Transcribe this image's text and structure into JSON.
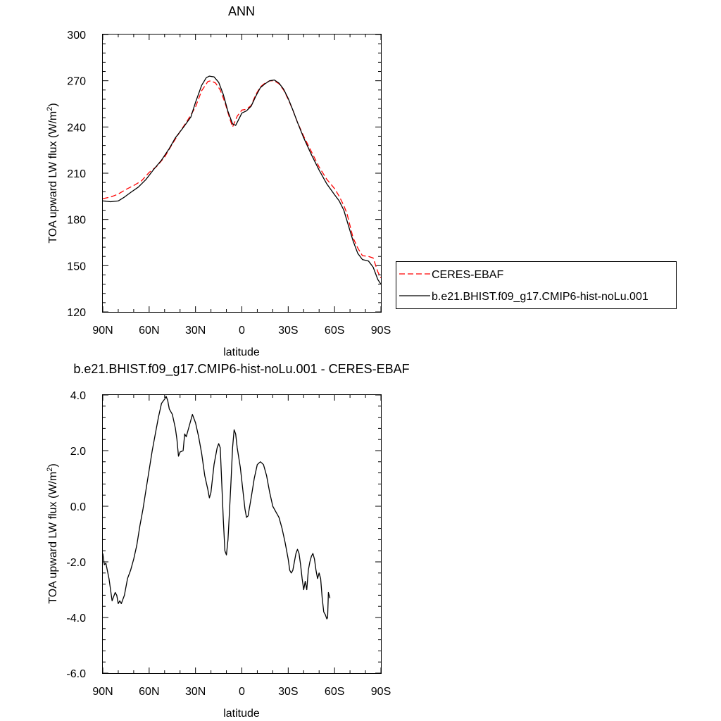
{
  "chart_data": [
    {
      "type": "line",
      "title": "ANN",
      "xlabel": "latitude",
      "ylabel": "TOA upward LW flux (W/m",
      "ylabel_sup": "2",
      "ylabel_close": ")",
      "xlim": [
        90,
        -90
      ],
      "ylim": [
        120,
        300
      ],
      "xticks": [
        90,
        60,
        30,
        0,
        -30,
        -60,
        -90
      ],
      "xtick_labels": [
        "90N",
        "60N",
        "30N",
        "0",
        "30S",
        "60S",
        "90S"
      ],
      "yticks": [
        120,
        150,
        180,
        210,
        240,
        270,
        300
      ],
      "ytick_labels": [
        "120",
        "150",
        "180",
        "210",
        "240",
        "270",
        "300"
      ],
      "legend_position": "right",
      "series": [
        {
          "name": "CERES-EBAF",
          "color": "#ff0000",
          "style": "dashed",
          "points": [
            [
              90,
              193.5
            ],
            [
              85,
              194.5
            ],
            [
              80,
              196.5
            ],
            [
              75,
              199.5
            ],
            [
              70,
              202
            ],
            [
              65,
              205
            ],
            [
              60,
              210.5
            ],
            [
              55,
              214.5
            ],
            [
              50,
              220.5
            ],
            [
              45,
              229
            ],
            [
              40,
              237
            ],
            [
              35,
              244.5
            ],
            [
              30,
              253
            ],
            [
              26,
              263.5
            ],
            [
              22,
              269.5
            ],
            [
              20,
              270
            ],
            [
              17,
              268.5
            ],
            [
              14,
              264
            ],
            [
              11,
              256
            ],
            [
              8,
              246
            ],
            [
              6,
              240
            ],
            [
              3,
              247
            ],
            [
              0,
              251
            ],
            [
              -3,
              251.5
            ],
            [
              -6,
              254
            ],
            [
              -9,
              261
            ],
            [
              -12,
              266
            ],
            [
              -15,
              268.5
            ],
            [
              -18,
              270
            ],
            [
              -21,
              270
            ],
            [
              -24,
              268
            ],
            [
              -27,
              264
            ],
            [
              -30,
              258
            ],
            [
              -33,
              251
            ],
            [
              -36,
              243
            ],
            [
              -40,
              234
            ],
            [
              -45,
              224
            ],
            [
              -50,
              214
            ],
            [
              -55,
              206
            ],
            [
              -60,
              200
            ],
            [
              -63,
              195
            ],
            [
              -66,
              189
            ],
            [
              -68,
              184
            ],
            [
              -70,
              176
            ],
            [
              -72,
              168
            ],
            [
              -75,
              161.5
            ],
            [
              -78,
              156.5
            ],
            [
              -82,
              156
            ],
            [
              -85,
              155
            ],
            [
              -88,
              146
            ],
            [
              -90,
              142
            ]
          ]
        },
        {
          "name": "b.e21.BHIST.f09_g17.CMIP6-hist-noLu.001",
          "color": "#000000",
          "style": "solid",
          "points": [
            [
              90,
              192
            ],
            [
              85,
              191.5
            ],
            [
              80,
              192
            ],
            [
              76,
              194.5
            ],
            [
              72,
              197.5
            ],
            [
              67,
              201
            ],
            [
              62,
              206
            ],
            [
              57,
              212.5
            ],
            [
              52,
              218.5
            ],
            [
              47,
              226
            ],
            [
              43,
              233
            ],
            [
              38,
              239.5
            ],
            [
              33,
              246.5
            ],
            [
              30,
              256
            ],
            [
              26,
              267
            ],
            [
              23,
              272
            ],
            [
              21,
              273
            ],
            [
              18,
              272.5
            ],
            [
              15,
              269
            ],
            [
              12,
              261
            ],
            [
              9,
              250
            ],
            [
              6,
              242
            ],
            [
              4,
              241
            ],
            [
              2,
              245
            ],
            [
              0,
              249
            ],
            [
              -3,
              250.5
            ],
            [
              -6,
              253.5
            ],
            [
              -9,
              260
            ],
            [
              -12,
              265.5
            ],
            [
              -15,
              268
            ],
            [
              -18,
              270
            ],
            [
              -21,
              270.5
            ],
            [
              -24,
              268.5
            ],
            [
              -27,
              264.5
            ],
            [
              -30,
              258.5
            ],
            [
              -33,
              251
            ],
            [
              -36,
              243
            ],
            [
              -40,
              233
            ],
            [
              -45,
              222
            ],
            [
              -50,
              212
            ],
            [
              -55,
              203
            ],
            [
              -60,
              196
            ],
            [
              -63,
              192
            ],
            [
              -66,
              186
            ],
            [
              -69,
              176
            ],
            [
              -72,
              166
            ],
            [
              -75,
              158
            ],
            [
              -78,
              154
            ],
            [
              -82,
              153
            ],
            [
              -85,
              149
            ],
            [
              -88,
              141
            ],
            [
              -90,
              138
            ]
          ]
        }
      ]
    },
    {
      "type": "line",
      "title": "b.e21.BHIST.f09_g17.CMIP6-hist-noLu.001 - CERES-EBAF",
      "xlabel": "latitude",
      "ylabel": "TOA upward LW flux (W/m",
      "ylabel_sup": "2",
      "ylabel_close": ")",
      "xlim": [
        90,
        -90
      ],
      "ylim": [
        -6,
        4
      ],
      "xticks": [
        90,
        60,
        30,
        0,
        -30,
        -60,
        -90
      ],
      "xtick_labels": [
        "90N",
        "60N",
        "30N",
        "0",
        "30S",
        "60S",
        "90S"
      ],
      "yticks": [
        -6,
        -4,
        -2,
        0,
        2,
        4
      ],
      "ytick_labels": [
        "-6.0",
        "-4.0",
        "-2.0",
        "0.0",
        "2.0",
        "4.0"
      ],
      "series": [
        {
          "color": "#000000",
          "style": "solid",
          "points": [
            [
              90,
              -1.7
            ],
            [
              89,
              -2.1
            ],
            [
              88,
              -2.05
            ],
            [
              86,
              -2.6
            ],
            [
              84,
              -3.4
            ],
            [
              82,
              -3.1
            ],
            [
              81,
              -3.2
            ],
            [
              80,
              -3.5
            ],
            [
              79,
              -3.4
            ],
            [
              78,
              -3.5
            ],
            [
              76,
              -3.2
            ],
            [
              74,
              -2.6
            ],
            [
              72,
              -2.3
            ],
            [
              70,
              -1.9
            ],
            [
              68,
              -1.4
            ],
            [
              66,
              -0.7
            ],
            [
              64,
              -0.1
            ],
            [
              62,
              0.6
            ],
            [
              60,
              1.3
            ],
            [
              58,
              2.0
            ],
            [
              56,
              2.6
            ],
            [
              54,
              3.2
            ],
            [
              52,
              3.7
            ],
            [
              50,
              3.85
            ],
            [
              49,
              3.95
            ],
            [
              48,
              3.8
            ],
            [
              47,
              3.5
            ],
            [
              45,
              3.3
            ],
            [
              43,
              2.8
            ],
            [
              42,
              2.4
            ],
            [
              41,
              1.8
            ],
            [
              40,
              1.95
            ],
            [
              38,
              2.0
            ],
            [
              37,
              2.6
            ],
            [
              36,
              2.5
            ],
            [
              34,
              2.9
            ],
            [
              32,
              3.3
            ],
            [
              30,
              3.0
            ],
            [
              28,
              2.5
            ],
            [
              26,
              1.9
            ],
            [
              24,
              1.1
            ],
            [
              22,
              0.6
            ],
            [
              21,
              0.3
            ],
            [
              20,
              0.5
            ],
            [
              18,
              1.5
            ],
            [
              16,
              2.1
            ],
            [
              15,
              2.25
            ],
            [
              14,
              2.1
            ],
            [
              13,
              0.8
            ],
            [
              12,
              -0.5
            ],
            [
              11,
              -1.6
            ],
            [
              10,
              -1.75
            ],
            [
              9,
              -1.2
            ],
            [
              8,
              -0.2
            ],
            [
              7,
              0.9
            ],
            [
              6,
              2.1
            ],
            [
              5,
              2.75
            ],
            [
              4,
              2.6
            ],
            [
              3,
              2.1
            ],
            [
              1,
              1.4
            ],
            [
              -1,
              0.4
            ],
            [
              -2,
              -0.1
            ],
            [
              -3,
              -0.4
            ],
            [
              -4,
              -0.35
            ],
            [
              -6,
              0.3
            ],
            [
              -8,
              1.0
            ],
            [
              -10,
              1.5
            ],
            [
              -12,
              1.6
            ],
            [
              -14,
              1.5
            ],
            [
              -16,
              1.1
            ],
            [
              -18,
              0.5
            ],
            [
              -20,
              0
            ],
            [
              -22,
              -0.2
            ],
            [
              -24,
              -0.4
            ],
            [
              -26,
              -0.8
            ],
            [
              -28,
              -1.3
            ],
            [
              -30,
              -1.9
            ],
            [
              -31,
              -2.3
            ],
            [
              -32,
              -2.4
            ],
            [
              -33,
              -2.3
            ],
            [
              -34,
              -2.0
            ],
            [
              -35,
              -1.7
            ],
            [
              -36,
              -1.55
            ],
            [
              -37,
              -1.7
            ],
            [
              -38,
              -2.1
            ],
            [
              -39,
              -2.6
            ],
            [
              -40,
              -3.0
            ],
            [
              -41,
              -2.7
            ],
            [
              -42,
              -3.0
            ],
            [
              -43,
              -2.3
            ],
            [
              -44,
              -2.0
            ],
            [
              -45,
              -1.8
            ],
            [
              -46,
              -1.7
            ],
            [
              -47,
              -1.9
            ],
            [
              -48,
              -2.3
            ],
            [
              -49,
              -2.6
            ],
            [
              -50,
              -2.4
            ],
            [
              -51,
              -2.6
            ],
            [
              -52,
              -3.3
            ],
            [
              -53,
              -3.8
            ],
            [
              -54,
              -3.9
            ],
            [
              -55,
              -4.05
            ],
            [
              -55.5,
              -4.0
            ],
            [
              -56,
              -3.1
            ],
            [
              -57,
              -3.3
            ]
          ]
        }
      ]
    }
  ],
  "legend": {
    "items": [
      {
        "label": "CERES-EBAF",
        "color": "#ff0000",
        "style": "dashed"
      },
      {
        "label": "b.e21.BHIST.f09_g17.CMIP6-hist-noLu.001",
        "color": "#000000",
        "style": "solid"
      }
    ]
  }
}
